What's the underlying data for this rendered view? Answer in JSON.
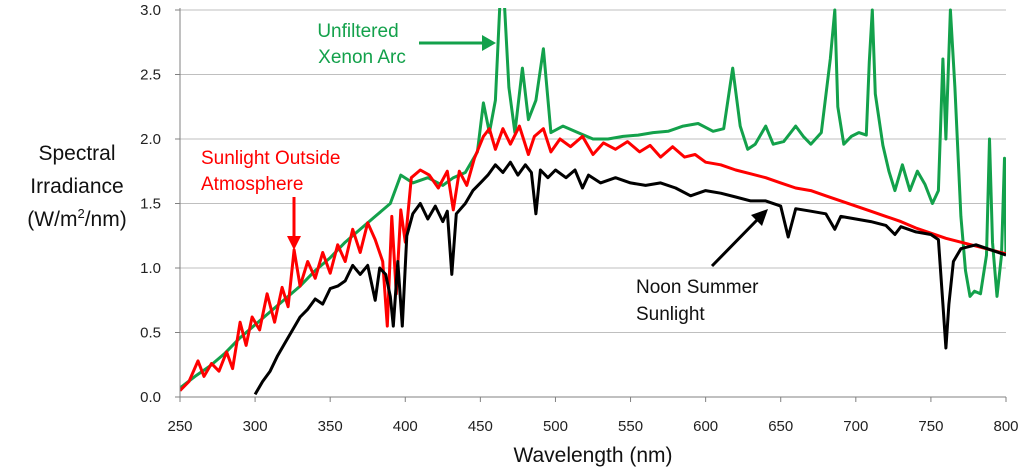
{
  "chart_data": {
    "type": "line",
    "title": "",
    "xlabel": "Wavelength (nm)",
    "ylabel_lines": [
      "Spectral",
      "Irradiance",
      "(W/m",
      "2",
      "/nm)"
    ],
    "xlim": [
      250,
      800
    ],
    "ylim": [
      0,
      3.0
    ],
    "x_ticks": [
      250,
      300,
      350,
      400,
      450,
      500,
      550,
      600,
      650,
      700,
      750,
      800
    ],
    "y_ticks": [
      0.0,
      0.5,
      1.0,
      1.5,
      2.0,
      2.5,
      3.0
    ],
    "y_tick_labels": [
      "0.0",
      "0.5",
      "1.0",
      "1.5",
      "2.0",
      "2.5",
      "3.0"
    ],
    "grid": "horizontal",
    "legend": "none",
    "colors": {
      "sunlight": "#000000",
      "outside": "#ff0000",
      "xenon": "#13a14b",
      "grid": "#bfbfbf",
      "axis": "#808080"
    },
    "series": [
      {
        "name": "Unfiltered Xenon Arc",
        "color": "#13a14b",
        "points": [
          [
            250,
            0.07
          ],
          [
            260,
            0.16
          ],
          [
            270,
            0.24
          ],
          [
            280,
            0.34
          ],
          [
            290,
            0.46
          ],
          [
            300,
            0.56
          ],
          [
            310,
            0.66
          ],
          [
            320,
            0.76
          ],
          [
            330,
            0.86
          ],
          [
            340,
            0.98
          ],
          [
            350,
            1.08
          ],
          [
            360,
            1.2
          ],
          [
            370,
            1.3
          ],
          [
            380,
            1.4
          ],
          [
            390,
            1.5
          ],
          [
            397,
            1.72
          ],
          [
            405,
            1.66
          ],
          [
            415,
            1.7
          ],
          [
            425,
            1.64
          ],
          [
            432,
            1.7
          ],
          [
            440,
            1.74
          ],
          [
            448,
            1.9
          ],
          [
            452,
            2.28
          ],
          [
            456,
            2.05
          ],
          [
            460,
            2.3
          ],
          [
            463,
            3.05
          ],
          [
            466,
            3.05
          ],
          [
            469,
            2.4
          ],
          [
            473,
            2.05
          ],
          [
            478,
            2.55
          ],
          [
            482,
            2.15
          ],
          [
            487,
            2.3
          ],
          [
            492,
            2.7
          ],
          [
            497,
            2.05
          ],
          [
            505,
            2.1
          ],
          [
            515,
            2.05
          ],
          [
            525,
            2.0
          ],
          [
            535,
            2.0
          ],
          [
            545,
            2.02
          ],
          [
            555,
            2.03
          ],
          [
            565,
            2.05
          ],
          [
            575,
            2.06
          ],
          [
            585,
            2.1
          ],
          [
            595,
            2.12
          ],
          [
            605,
            2.06
          ],
          [
            612,
            2.08
          ],
          [
            618,
            2.55
          ],
          [
            623,
            2.1
          ],
          [
            628,
            1.92
          ],
          [
            633,
            1.96
          ],
          [
            640,
            2.1
          ],
          [
            645,
            1.96
          ],
          [
            652,
            1.98
          ],
          [
            660,
            2.1
          ],
          [
            665,
            2.02
          ],
          [
            670,
            1.96
          ],
          [
            677,
            2.05
          ],
          [
            683,
            2.62
          ],
          [
            686,
            3.0
          ],
          [
            688,
            2.25
          ],
          [
            692,
            1.96
          ],
          [
            697,
            2.02
          ],
          [
            702,
            2.05
          ],
          [
            707,
            2.03
          ],
          [
            709,
            2.6
          ],
          [
            711,
            3.0
          ],
          [
            713,
            2.35
          ],
          [
            718,
            1.95
          ],
          [
            722,
            1.75
          ],
          [
            726,
            1.6
          ],
          [
            731,
            1.8
          ],
          [
            736,
            1.6
          ],
          [
            741,
            1.75
          ],
          [
            746,
            1.65
          ],
          [
            751,
            1.5
          ],
          [
            755,
            1.6
          ],
          [
            758,
            2.62
          ],
          [
            760,
            2.0
          ],
          [
            763,
            3.0
          ],
          [
            766,
            2.4
          ],
          [
            770,
            1.4
          ],
          [
            773,
            0.98
          ],
          [
            776,
            0.78
          ],
          [
            779,
            0.82
          ],
          [
            783,
            0.8
          ],
          [
            787,
            1.1
          ],
          [
            789,
            2.0
          ],
          [
            791,
            1.2
          ],
          [
            794,
            0.78
          ],
          [
            797,
            1.1
          ],
          [
            799,
            1.85
          ],
          [
            800,
            1.1
          ]
        ]
      },
      {
        "name": "Sunlight Outside Atmosphere",
        "color": "#ff0000",
        "points": [
          [
            250,
            0.05
          ],
          [
            256,
            0.12
          ],
          [
            262,
            0.28
          ],
          [
            266,
            0.16
          ],
          [
            271,
            0.26
          ],
          [
            276,
            0.2
          ],
          [
            281,
            0.35
          ],
          [
            285,
            0.22
          ],
          [
            290,
            0.58
          ],
          [
            294,
            0.4
          ],
          [
            298,
            0.62
          ],
          [
            303,
            0.52
          ],
          [
            308,
            0.8
          ],
          [
            313,
            0.58
          ],
          [
            318,
            0.85
          ],
          [
            322,
            0.7
          ],
          [
            326,
            1.14
          ],
          [
            330,
            0.86
          ],
          [
            335,
            1.05
          ],
          [
            340,
            0.92
          ],
          [
            345,
            1.12
          ],
          [
            350,
            0.96
          ],
          [
            355,
            1.18
          ],
          [
            360,
            1.05
          ],
          [
            365,
            1.3
          ],
          [
            370,
            1.12
          ],
          [
            375,
            1.35
          ],
          [
            380,
            1.22
          ],
          [
            385,
            1.05
          ],
          [
            388,
            0.55
          ],
          [
            391,
            1.4
          ],
          [
            394,
            0.8
          ],
          [
            397,
            1.45
          ],
          [
            400,
            1.2
          ],
          [
            404,
            1.7
          ],
          [
            410,
            1.76
          ],
          [
            416,
            1.72
          ],
          [
            422,
            1.62
          ],
          [
            428,
            1.75
          ],
          [
            432,
            1.45
          ],
          [
            436,
            1.75
          ],
          [
            441,
            1.64
          ],
          [
            446,
            1.85
          ],
          [
            452,
            2.02
          ],
          [
            456,
            2.08
          ],
          [
            460,
            1.92
          ],
          [
            465,
            2.08
          ],
          [
            470,
            1.96
          ],
          [
            476,
            2.1
          ],
          [
            482,
            1.88
          ],
          [
            486,
            2.02
          ],
          [
            492,
            2.08
          ],
          [
            497,
            1.9
          ],
          [
            503,
            2.0
          ],
          [
            510,
            1.94
          ],
          [
            518,
            2.02
          ],
          [
            525,
            1.88
          ],
          [
            532,
            1.97
          ],
          [
            540,
            1.92
          ],
          [
            548,
            1.98
          ],
          [
            556,
            1.9
          ],
          [
            563,
            1.95
          ],
          [
            570,
            1.86
          ],
          [
            578,
            1.94
          ],
          [
            586,
            1.86
          ],
          [
            593,
            1.88
          ],
          [
            600,
            1.82
          ],
          [
            610,
            1.8
          ],
          [
            620,
            1.76
          ],
          [
            630,
            1.73
          ],
          [
            640,
            1.7
          ],
          [
            650,
            1.66
          ],
          [
            660,
            1.62
          ],
          [
            670,
            1.6
          ],
          [
            680,
            1.56
          ],
          [
            690,
            1.52
          ],
          [
            700,
            1.48
          ],
          [
            710,
            1.44
          ],
          [
            720,
            1.4
          ],
          [
            730,
            1.36
          ],
          [
            740,
            1.31
          ],
          [
            750,
            1.27
          ],
          [
            760,
            1.23
          ],
          [
            770,
            1.2
          ],
          [
            780,
            1.17
          ],
          [
            790,
            1.14
          ],
          [
            800,
            1.11
          ]
        ]
      },
      {
        "name": "Noon Summer Sunlight",
        "color": "#000000",
        "points": [
          [
            300,
            0.02
          ],
          [
            305,
            0.12
          ],
          [
            310,
            0.2
          ],
          [
            315,
            0.32
          ],
          [
            320,
            0.42
          ],
          [
            325,
            0.52
          ],
          [
            330,
            0.62
          ],
          [
            335,
            0.68
          ],
          [
            340,
            0.76
          ],
          [
            345,
            0.72
          ],
          [
            350,
            0.84
          ],
          [
            355,
            0.86
          ],
          [
            360,
            0.9
          ],
          [
            365,
            1.02
          ],
          [
            370,
            0.95
          ],
          [
            375,
            1.02
          ],
          [
            380,
            0.75
          ],
          [
            383,
            1.0
          ],
          [
            387,
            0.95
          ],
          [
            390,
            0.78
          ],
          [
            392,
            0.55
          ],
          [
            395,
            1.05
          ],
          [
            398,
            0.55
          ],
          [
            401,
            1.25
          ],
          [
            405,
            1.42
          ],
          [
            410,
            1.5
          ],
          [
            415,
            1.38
          ],
          [
            420,
            1.48
          ],
          [
            425,
            1.36
          ],
          [
            428,
            1.44
          ],
          [
            431,
            0.95
          ],
          [
            434,
            1.42
          ],
          [
            440,
            1.5
          ],
          [
            445,
            1.6
          ],
          [
            450,
            1.66
          ],
          [
            455,
            1.72
          ],
          [
            460,
            1.8
          ],
          [
            465,
            1.74
          ],
          [
            470,
            1.82
          ],
          [
            475,
            1.72
          ],
          [
            480,
            1.8
          ],
          [
            484,
            1.74
          ],
          [
            487,
            1.42
          ],
          [
            490,
            1.76
          ],
          [
            495,
            1.7
          ],
          [
            500,
            1.76
          ],
          [
            507,
            1.7
          ],
          [
            513,
            1.76
          ],
          [
            518,
            1.62
          ],
          [
            522,
            1.72
          ],
          [
            530,
            1.66
          ],
          [
            540,
            1.7
          ],
          [
            550,
            1.66
          ],
          [
            560,
            1.64
          ],
          [
            570,
            1.66
          ],
          [
            580,
            1.62
          ],
          [
            590,
            1.56
          ],
          [
            600,
            1.6
          ],
          [
            610,
            1.58
          ],
          [
            620,
            1.55
          ],
          [
            630,
            1.52
          ],
          [
            640,
            1.52
          ],
          [
            650,
            1.48
          ],
          [
            655,
            1.24
          ],
          [
            660,
            1.46
          ],
          [
            670,
            1.44
          ],
          [
            680,
            1.42
          ],
          [
            686,
            1.3
          ],
          [
            690,
            1.4
          ],
          [
            700,
            1.38
          ],
          [
            710,
            1.36
          ],
          [
            720,
            1.33
          ],
          [
            726,
            1.26
          ],
          [
            730,
            1.32
          ],
          [
            740,
            1.28
          ],
          [
            750,
            1.26
          ],
          [
            755,
            1.22
          ],
          [
            758,
            0.72
          ],
          [
            760,
            0.38
          ],
          [
            762,
            0.72
          ],
          [
            765,
            1.05
          ],
          [
            770,
            1.15
          ],
          [
            780,
            1.18
          ],
          [
            790,
            1.14
          ],
          [
            800,
            1.1
          ]
        ]
      }
    ],
    "annotations": [
      {
        "lines": [
          "Unfiltered",
          "Xenon Arc"
        ],
        "color": "#13a14b"
      },
      {
        "lines": [
          "Sunlight Outside",
          "Atmosphere"
        ],
        "color": "#ff0000"
      },
      {
        "lines": [
          "Noon Summer",
          "Sunlight"
        ],
        "color": "#111111"
      }
    ]
  }
}
